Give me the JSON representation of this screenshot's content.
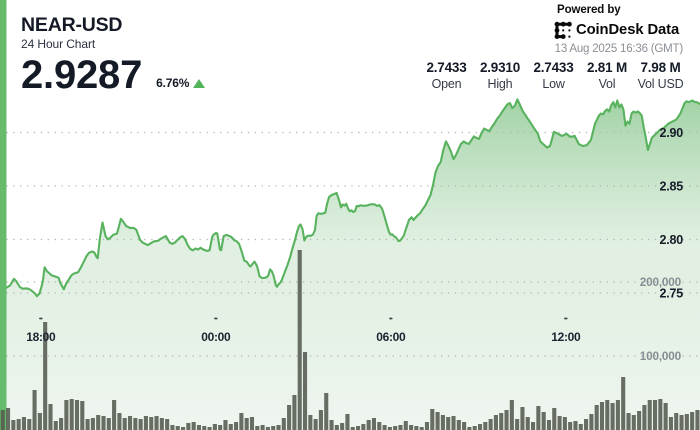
{
  "widget": {
    "title": "NEAR-USD",
    "subtitle": "24 Hour Chart",
    "price": "2.9287",
    "change_percent": "6.76%",
    "change_direction": "up"
  },
  "branding": {
    "powered_by": "Powered by",
    "brand": "CoinDesk Data",
    "timestamp": "13 Aug 2025 16:36 (GMT)"
  },
  "stats": [
    {
      "value": "2.7433",
      "label": "Open"
    },
    {
      "value": "2.9310",
      "label": "High"
    },
    {
      "value": "2.7433",
      "label": "Low"
    },
    {
      "value": "2.81 M",
      "label": "Vol"
    },
    {
      "value": "7.98 M",
      "label": "Vol USD"
    }
  ],
  "colors": {
    "accent_green": "#66bb6c",
    "line_green": "#58b25e",
    "up_green": "#53b45a",
    "area_top": "#92cb96",
    "area_mid": "#cde6cf",
    "area_bottom": "#eef5ef",
    "volume_bar": "#555a50",
    "grid_dot": "#b2b8b8",
    "dark_text": "#141a26",
    "muted_text": "#8b9096"
  },
  "chart_data": {
    "type": "line+bar",
    "title": "NEAR-USD 24 hour price (line) and volume (bars)",
    "x_axis": {
      "labels": [
        "18:00",
        "00:00",
        "06:00",
        "12:00"
      ],
      "label_hours": [
        1.4,
        7.4,
        13.4,
        19.4
      ],
      "range_hours": [
        0,
        24
      ]
    },
    "price_axis": {
      "ticks": [
        2.9,
        2.85,
        2.8,
        2.75
      ],
      "labels": [
        "2.90",
        "2.85",
        "2.80",
        "2.75"
      ],
      "side": "right"
    },
    "volume_axis": {
      "ticks": [
        200000,
        100000
      ],
      "labels": [
        "200,000",
        "100,000"
      ],
      "side": "right"
    },
    "grid": "dotted-horizontal",
    "legend": "none",
    "price_series": {
      "name": "NEAR-USD price",
      "hours": [
        0.206,
        0.343,
        0.48,
        0.559,
        0.679,
        0.778,
        0.878,
        0.96,
        1.077,
        1.197,
        1.269,
        1.354,
        1.437,
        1.474,
        1.529,
        1.611,
        1.68,
        1.769,
        1.889,
        2.009,
        2.067,
        2.187,
        2.27,
        2.349,
        2.448,
        2.527,
        2.606,
        2.688,
        2.787,
        2.907,
        2.969,
        3.051,
        3.161,
        3.237,
        3.312,
        3.35,
        3.425,
        3.514,
        3.617,
        3.693,
        3.768,
        3.878,
        4.011,
        4.145,
        4.231,
        4.32,
        4.454,
        4.584,
        4.673,
        4.803,
        4.893,
        4.982,
        5.071,
        5.201,
        5.29,
        5.421,
        5.51,
        5.599,
        5.688,
        5.729,
        5.818,
        5.907,
        5.997,
        6.082,
        6.171,
        6.261,
        6.346,
        6.435,
        6.525,
        6.614,
        6.699,
        6.789,
        6.878,
        6.963,
        7.097,
        7.186,
        7.272,
        7.317,
        7.406,
        7.45,
        7.539,
        7.581,
        7.67,
        7.759,
        7.845,
        7.934,
        8.023,
        8.112,
        8.198,
        8.287,
        8.376,
        8.465,
        8.551,
        8.589,
        8.722,
        8.811,
        8.901,
        8.99,
        9.051,
        9.141,
        9.199,
        9.257,
        9.319,
        9.377,
        9.456,
        9.497,
        9.555,
        9.617,
        9.675,
        9.765,
        9.857,
        9.946,
        10.035,
        10.125,
        10.183,
        10.251,
        10.303,
        10.371,
        10.437,
        10.498,
        10.56,
        10.646,
        10.731,
        10.8,
        10.855,
        10.913,
        11.006,
        11.091,
        11.153,
        11.211,
        11.28,
        11.362,
        11.451,
        11.541,
        11.63,
        11.691,
        11.75,
        11.811,
        11.87,
        11.931,
        11.99,
        12.051,
        12.11,
        12.171,
        12.23,
        12.288,
        12.35,
        12.48,
        12.617,
        12.679,
        12.768,
        12.857,
        12.919,
        13.008,
        13.097,
        13.155,
        13.217,
        13.275,
        13.337,
        13.395,
        13.454,
        13.515,
        13.574,
        13.666,
        13.725,
        13.786,
        13.845,
        13.934,
        14.023,
        14.112,
        14.177,
        14.297,
        14.41,
        14.496,
        14.585,
        14.674,
        14.76,
        14.846,
        14.935,
        15.017,
        15.11,
        15.199,
        15.288,
        15.377,
        15.463,
        15.549,
        15.634,
        15.723,
        15.806,
        15.902,
        15.977,
        16.077,
        16.166,
        16.251,
        16.337,
        16.426,
        16.509,
        16.601,
        16.69,
        16.776,
        16.862,
        16.951,
        17.04,
        17.129,
        17.211,
        17.304,
        17.39,
        17.479,
        17.565,
        17.654,
        17.739,
        17.829,
        17.914,
        18.0,
        18.089,
        18.175,
        18.264,
        18.35,
        18.439,
        18.528,
        18.617,
        18.754,
        18.857,
        18.994,
        19.131,
        19.269,
        19.423,
        19.56,
        19.701,
        19.841,
        19.978,
        20.119,
        20.259,
        20.4,
        20.537,
        20.606,
        20.678,
        20.743,
        20.818,
        20.887,
        20.955,
        21.027,
        21.096,
        21.165,
        21.237,
        21.305,
        21.374,
        21.446,
        21.514,
        21.583,
        21.655,
        21.723,
        21.792,
        21.864,
        21.933,
        22.001,
        22.073,
        22.142,
        22.214,
        22.282,
        22.351,
        22.491,
        22.629,
        22.769,
        22.91,
        23.05,
        23.187,
        23.328,
        23.469,
        23.537,
        23.606,
        23.746,
        23.815,
        23.887,
        24.0
      ],
      "values": [
        2.7547,
        2.757,
        2.7633,
        2.761,
        2.7556,
        2.754,
        2.7543,
        2.7541,
        2.7523,
        2.7496,
        2.747,
        2.7496,
        2.7573,
        2.7621,
        2.774,
        2.7703,
        2.7687,
        2.7665,
        2.7654,
        2.7643,
        2.7594,
        2.7535,
        2.7589,
        2.7621,
        2.7665,
        2.7681,
        2.7687,
        2.7697,
        2.7747,
        2.7811,
        2.7846,
        2.7876,
        2.7888,
        2.7878,
        2.7836,
        2.7825,
        2.8012,
        2.8159,
        2.8033,
        2.8002,
        2.8012,
        2.8043,
        2.8055,
        2.8193,
        2.8164,
        2.8127,
        2.8108,
        2.8108,
        2.8092,
        2.7995,
        2.7971,
        2.7959,
        2.7948,
        2.7971,
        2.7983,
        2.7988,
        2.8007,
        2.802,
        2.8032,
        2.8012,
        2.7971,
        2.7959,
        2.7971,
        2.7995,
        2.802,
        2.8032,
        2.8003,
        2.7948,
        2.7911,
        2.7899,
        2.7916,
        2.7907,
        2.7923,
        2.7907,
        2.7893,
        2.7899,
        2.802,
        2.8043,
        2.8061,
        2.8055,
        2.7907,
        2.7899,
        2.8032,
        2.8043,
        2.8035,
        2.8023,
        2.7995,
        2.7983,
        2.7959,
        2.7887,
        2.7803,
        2.7791,
        2.7755,
        2.7748,
        2.7793,
        2.7753,
        2.7655,
        2.7639,
        2.7641,
        2.7647,
        2.7664,
        2.7721,
        2.7704,
        2.7664,
        2.7574,
        2.7558,
        2.7582,
        2.7598,
        2.7631,
        2.7696,
        2.7761,
        2.7835,
        2.7924,
        2.8006,
        2.807,
        2.8126,
        2.814,
        2.8098,
        2.7991,
        2.8023,
        2.8036,
        2.8034,
        2.8047,
        2.8089,
        2.822,
        2.8245,
        2.824,
        2.8245,
        2.8251,
        2.833,
        2.8395,
        2.8415,
        2.8424,
        2.8435,
        2.8363,
        2.8301,
        2.8327,
        2.8317,
        2.8334,
        2.829,
        2.8264,
        2.8273,
        2.8257,
        2.8264,
        2.8314,
        2.831,
        2.832,
        2.8315,
        2.832,
        2.8327,
        2.833,
        2.8327,
        2.8314,
        2.8321,
        2.829,
        2.824,
        2.8183,
        2.8126,
        2.8069,
        2.8045,
        2.8048,
        2.8028,
        2.8021,
        2.7984,
        2.7991,
        2.8012,
        2.8036,
        2.811,
        2.8183,
        2.8208,
        2.8182,
        2.822,
        2.8248,
        2.8285,
        2.8319,
        2.8369,
        2.8415,
        2.8509,
        2.863,
        2.8687,
        2.8725,
        2.8836,
        2.8917,
        2.8874,
        2.8821,
        2.875,
        2.879,
        2.8846,
        2.8893,
        2.8917,
        2.8902,
        2.8893,
        2.893,
        2.8964,
        2.8949,
        2.894,
        2.8995,
        2.9036,
        2.9023,
        2.9012,
        2.9051,
        2.9084,
        2.9126,
        2.9156,
        2.9192,
        2.9228,
        2.9262,
        2.9276,
        2.9228,
        2.9251,
        2.9309,
        2.9257,
        2.9204,
        2.9168,
        2.9132,
        2.9098,
        2.906,
        2.9023,
        2.8989,
        2.8917,
        2.8893,
        2.886,
        2.8874,
        2.9007,
        2.8988,
        2.8968,
        2.8988,
        2.8958,
        2.8968,
        2.8893,
        2.8874,
        2.8881,
        2.893,
        2.9082,
        2.9159,
        2.9178,
        2.917,
        2.9201,
        2.9216,
        2.9196,
        2.9254,
        2.9284,
        2.9235,
        2.9299,
        2.9235,
        2.9262,
        2.9216,
        2.9064,
        2.9102,
        2.9082,
        2.9178,
        2.9196,
        2.9185,
        2.9196,
        2.9182,
        2.9159,
        2.9045,
        2.895,
        2.8836,
        2.8893,
        2.895,
        2.8988,
        2.9025,
        2.9045,
        2.9082,
        2.9102,
        2.9121,
        2.9178,
        2.9273,
        2.9292,
        2.9284,
        2.9299,
        2.9284,
        2.9284,
        2.9266
      ]
    },
    "volume_series": {
      "name": "Volume",
      "values": [
        27000,
        29700,
        13500,
        14900,
        17600,
        14900,
        54100,
        23000,
        145900,
        35100,
        12200,
        16200,
        40500,
        41900,
        40500,
        39200,
        14900,
        16200,
        20300,
        18900,
        16200,
        40500,
        23000,
        16200,
        18900,
        16200,
        14900,
        18900,
        17600,
        18900,
        16200,
        14900,
        6800,
        5400,
        4100,
        9500,
        10800,
        6800,
        5400,
        4100,
        8100,
        6800,
        13500,
        8100,
        10800,
        23000,
        16200,
        17600,
        5400,
        6800,
        4100,
        5400,
        6800,
        16200,
        33800,
        47300,
        243200,
        105400,
        20300,
        14900,
        27000,
        50000,
        13500,
        6800,
        9500,
        21600,
        4100,
        5400,
        8100,
        13500,
        16200,
        10800,
        6800,
        4100,
        5400,
        6800,
        12200,
        6800,
        5400,
        4100,
        10800,
        28400,
        24300,
        20300,
        17600,
        18900,
        13500,
        10800,
        4100,
        5400,
        8100,
        10800,
        14900,
        20300,
        23000,
        27000,
        40500,
        14900,
        31100,
        17600,
        10800,
        32400,
        24300,
        13500,
        29700,
        18900,
        17600,
        10800,
        12200,
        8100,
        14900,
        21600,
        33800,
        37800,
        40500,
        36500,
        40500,
        71600,
        23000,
        20300,
        25700,
        33800,
        40500,
        40500,
        41900,
        36500,
        17600,
        23000,
        20300,
        21600,
        24300,
        27000
      ]
    }
  }
}
